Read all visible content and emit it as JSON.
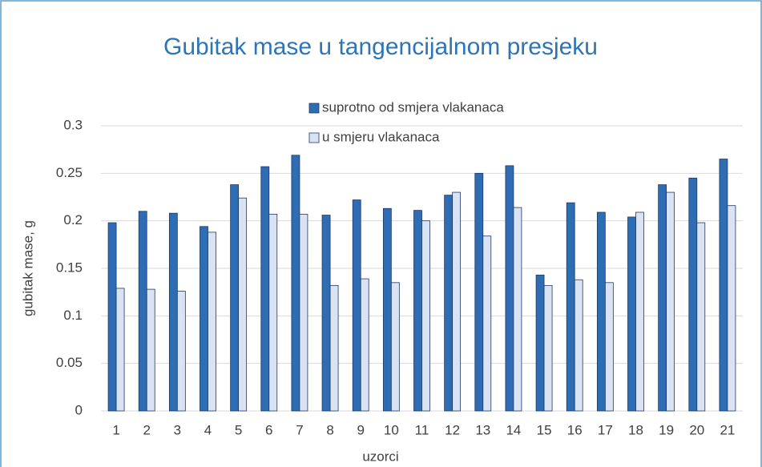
{
  "chart_data": {
    "type": "bar",
    "title": "Gubitak mase u tangencijalnom presjeku",
    "x_label": "uzorci",
    "y_label": "gubitak mase, g",
    "categories": [
      "1",
      "2",
      "3",
      "4",
      "5",
      "6",
      "7",
      "8",
      "9",
      "10",
      "11",
      "12",
      "13",
      "14",
      "15",
      "16",
      "17",
      "18",
      "19",
      "20",
      "21"
    ],
    "series": [
      {
        "name": "suprotno od smjera vlakanaca",
        "color": "#2e6db4",
        "values": [
          0.198,
          0.21,
          0.208,
          0.194,
          0.238,
          0.257,
          0.269,
          0.206,
          0.222,
          0.213,
          0.211,
          0.227,
          0.25,
          0.258,
          0.143,
          0.219,
          0.209,
          0.204,
          0.238,
          0.245,
          0.265
        ]
      },
      {
        "name": "u smjeru vlakanaca",
        "color": "#dae3f3",
        "values": [
          0.129,
          0.128,
          0.126,
          0.188,
          0.224,
          0.207,
          0.207,
          0.132,
          0.139,
          0.135,
          0.2,
          0.23,
          0.184,
          0.214,
          0.132,
          0.138,
          0.135,
          0.209,
          0.23,
          0.198,
          0.216
        ]
      }
    ],
    "ylim": [
      0,
      0.3
    ],
    "yticks": [
      0,
      0.05,
      0.1,
      0.15,
      0.2,
      0.25,
      0.3
    ],
    "grid": true
  }
}
